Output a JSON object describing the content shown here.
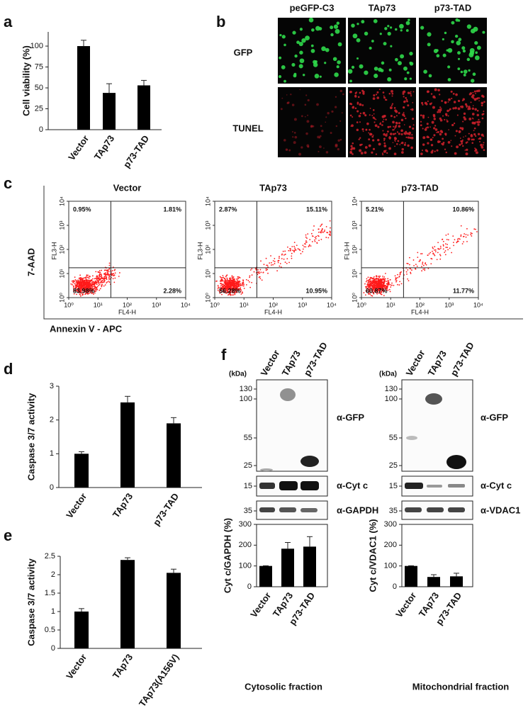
{
  "panel_labels": [
    "a",
    "b",
    "c",
    "d",
    "e",
    "f"
  ],
  "chart_data": [
    {
      "type": "bar",
      "y_label": "Cell viability (%)",
      "categories": [
        "Vector",
        "TAp73",
        "p73-TAD"
      ],
      "values": [
        100,
        44,
        53
      ],
      "errors": [
        7,
        11,
        6
      ],
      "ylim": [
        0,
        117
      ],
      "yticks": [
        0,
        25,
        50,
        75,
        100
      ],
      "color": "#000000"
    },
    {
      "type": "bar",
      "y_label": "Caspase 3/7 activity",
      "categories": [
        "Vector",
        "TAp73",
        "p73-TAD"
      ],
      "values": [
        1.0,
        2.52,
        1.9
      ],
      "errors": [
        0.06,
        0.18,
        0.17
      ],
      "ylim": [
        0,
        3
      ],
      "yticks": [
        0,
        1,
        2,
        3
      ],
      "color": "#000000"
    },
    {
      "type": "bar",
      "y_label": "Caspase 3/7 activity",
      "categories": [
        "Vector",
        "TAp73",
        "TAp73(A156V)"
      ],
      "values": [
        1.0,
        2.4,
        2.05
      ],
      "errors": [
        0.08,
        0.06,
        0.1
      ],
      "ylim": [
        0,
        2.5
      ],
      "yticks": [
        0,
        0.5,
        1,
        1.5,
        2,
        2.5
      ],
      "color": "#000000"
    },
    {
      "type": "bar",
      "y_label": "Cyt c/GAPDH (%)",
      "x_label": "Cytosolic fraction",
      "categories": [
        "Vector",
        "TAp73",
        "p73-TAD"
      ],
      "values": [
        100,
        183,
        193
      ],
      "errors": [
        1,
        30,
        48
      ],
      "ylim": [
        0,
        300
      ],
      "yticks": [
        0,
        100,
        200,
        300
      ],
      "color": "#000000"
    },
    {
      "type": "bar",
      "y_label": "Cyt c/VDAC1 (%)",
      "x_label": "Mitochondrial fraction",
      "categories": [
        "Vector",
        "TAp73",
        "p73-TAD"
      ],
      "values": [
        100,
        47,
        50
      ],
      "errors": [
        1,
        11,
        15
      ],
      "ylim": [
        0,
        300
      ],
      "yticks": [
        0,
        100,
        200,
        300
      ],
      "color": "#000000"
    }
  ],
  "microscopy": {
    "columns": [
      "peGFP-C3",
      "TAp73",
      "p73-TAD"
    ],
    "rows": [
      "GFP",
      "TUNEL"
    ]
  },
  "flow": {
    "y_label": "7-AAD",
    "x_label": "Annexin V - APC",
    "x_axis": "FL4-H",
    "y_axis": "FL3-H",
    "log_scale": true,
    "lim": [
      1,
      10000
    ],
    "ticks": [
      {
        "value": 1,
        "label": "10⁰"
      },
      {
        "value": 10,
        "label": "10¹"
      },
      {
        "value": 100,
        "label": "10²"
      },
      {
        "value": 1000,
        "label": "10³"
      },
      {
        "value": 10000,
        "label": "10⁴"
      }
    ],
    "plots": [
      {
        "title": "Vector",
        "quadrants": [
          "0.95%",
          "1.81%",
          "83.98%",
          "2.28%"
        ]
      },
      {
        "title": "TAp73",
        "quadrants": [
          "2.87%",
          "15.11%",
          "56.28%",
          "10.95%"
        ]
      },
      {
        "title": "p73-TAD",
        "quadrants": [
          "5.21%",
          "10.86%",
          "60.87%",
          "11.77%"
        ]
      }
    ]
  },
  "blots": [
    {
      "unit": "(kDa)",
      "lanes": [
        "Vector",
        "TAp73",
        "p73-TAD"
      ],
      "markers": [
        130,
        100,
        55,
        25,
        15,
        35
      ],
      "antibodies": [
        "α-GFP",
        "α-Cyt c",
        "α-GAPDH"
      ]
    },
    {
      "unit": "(kDa)",
      "lanes": [
        "Vector",
        "TAp73",
        "p73-TAD"
      ],
      "markers": [
        130,
        100,
        55,
        25,
        15,
        35
      ],
      "antibodies": [
        "α-GFP",
        "α-Cyt c",
        "α-VDAC1"
      ]
    }
  ]
}
